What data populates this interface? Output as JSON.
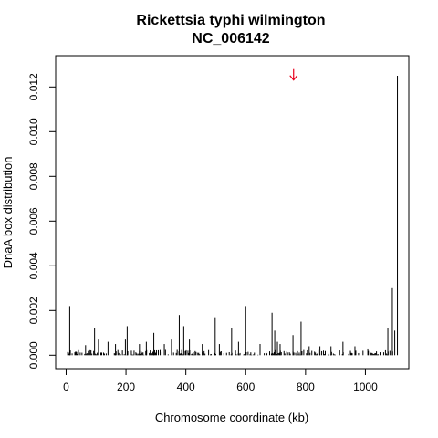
{
  "chart_data": {
    "type": "bar",
    "title": "Rickettsia typhi wilmington",
    "subtitle": "NC_006142",
    "xlabel": "Chromosome coordinate (kb)",
    "ylabel": "DnaA box distribution",
    "xlim": [
      -35,
      1145
    ],
    "ylim": [
      -0.0006,
      0.0134
    ],
    "x_ticks": [
      0,
      200,
      400,
      600,
      800,
      1000
    ],
    "y_ticks": [
      0.0,
      0.002,
      0.004,
      0.006,
      0.008,
      0.01,
      0.012
    ],
    "y_tick_labels": [
      "0.000",
      "0.002",
      "0.004",
      "0.006",
      "0.008",
      "0.010",
      "0.012"
    ],
    "grid": false,
    "bar_color": "#000000",
    "marker": {
      "x": 760,
      "y": 0.0128,
      "shape": "arrow-down",
      "color": "#e8001c"
    },
    "peaks": [
      {
        "x": 12,
        "y": 0.0022
      },
      {
        "x": 65,
        "y": 0.00045
      },
      {
        "x": 95,
        "y": 0.0012
      },
      {
        "x": 108,
        "y": 0.0007
      },
      {
        "x": 140,
        "y": 0.0006
      },
      {
        "x": 165,
        "y": 0.0005
      },
      {
        "x": 198,
        "y": 0.0007
      },
      {
        "x": 204,
        "y": 0.0013
      },
      {
        "x": 245,
        "y": 0.0005
      },
      {
        "x": 268,
        "y": 0.0006
      },
      {
        "x": 293,
        "y": 0.001
      },
      {
        "x": 328,
        "y": 0.0005
      },
      {
        "x": 352,
        "y": 0.0007
      },
      {
        "x": 378,
        "y": 0.0018
      },
      {
        "x": 393,
        "y": 0.0013
      },
      {
        "x": 412,
        "y": 0.0007
      },
      {
        "x": 455,
        "y": 0.0005
      },
      {
        "x": 498,
        "y": 0.0017
      },
      {
        "x": 512,
        "y": 0.0005
      },
      {
        "x": 553,
        "y": 0.0012
      },
      {
        "x": 576,
        "y": 0.0006
      },
      {
        "x": 600,
        "y": 0.0022
      },
      {
        "x": 648,
        "y": 0.0005
      },
      {
        "x": 688,
        "y": 0.0019
      },
      {
        "x": 697,
        "y": 0.0011
      },
      {
        "x": 706,
        "y": 0.0006
      },
      {
        "x": 715,
        "y": 0.0005
      },
      {
        "x": 758,
        "y": 0.0009
      },
      {
        "x": 785,
        "y": 0.0015
      },
      {
        "x": 812,
        "y": 0.0004
      },
      {
        "x": 848,
        "y": 0.0004
      },
      {
        "x": 885,
        "y": 0.0004
      },
      {
        "x": 925,
        "y": 0.0006
      },
      {
        "x": 965,
        "y": 0.0004
      },
      {
        "x": 1008,
        "y": 0.0003
      },
      {
        "x": 1075,
        "y": 0.0012
      },
      {
        "x": 1090,
        "y": 0.003
      },
      {
        "x": 1098,
        "y": 0.0011
      },
      {
        "x": 1107,
        "y": 0.0125
      }
    ]
  }
}
